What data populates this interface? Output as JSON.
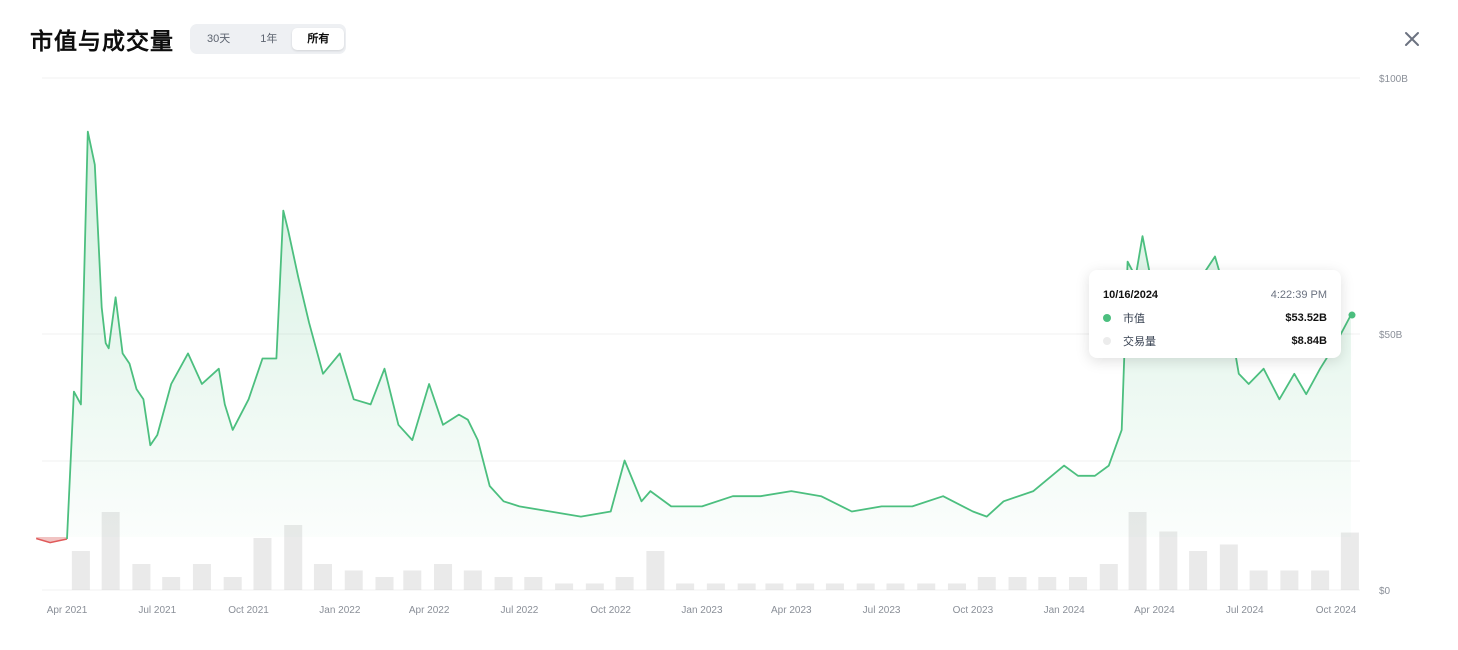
{
  "header": {
    "title": "市值与成交量",
    "ranges": [
      {
        "label": "30天",
        "active": false
      },
      {
        "label": "1年",
        "active": false
      },
      {
        "label": "所有",
        "active": true
      }
    ]
  },
  "tooltip": {
    "date": "10/16/2024",
    "time": "4:22:39 PM",
    "rows": [
      {
        "label": "市值",
        "value": "$53.52B",
        "color": "#4cbf7f"
      },
      {
        "label": "交易量",
        "value": "$8.84B",
        "color": "#ececec"
      }
    ]
  },
  "colors": {
    "line": "#4cbf7f",
    "negative": "#e05a5a",
    "volume": "#d8d8d8",
    "grid": "#f0f0f0"
  },
  "chart_data": {
    "type": "area",
    "y_ticks": [
      "$0",
      "$50B",
      "$100B"
    ],
    "ylim": [
      0,
      100
    ],
    "y_unit": "$B",
    "x_ticks": [
      "Apr 2021",
      "Jul 2021",
      "Oct 2021",
      "Jan 2022",
      "Apr 2022",
      "Jul 2022",
      "Oct 2022",
      "Jan 2023",
      "Apr 2023",
      "Jul 2023",
      "Oct 2023",
      "Jan 2024",
      "Apr 2024",
      "Jul 2024",
      "Oct 2024"
    ],
    "series": [
      {
        "name": "市值",
        "x": [
          "2021-03-01",
          "2021-03-15",
          "2021-04-01",
          "2021-04-08",
          "2021-04-15",
          "2021-04-22",
          "2021-04-29",
          "2021-05-06",
          "2021-05-10",
          "2021-05-13",
          "2021-05-20",
          "2021-05-27",
          "2021-06-03",
          "2021-06-10",
          "2021-06-17",
          "2021-06-24",
          "2021-07-01",
          "2021-07-15",
          "2021-08-01",
          "2021-08-15",
          "2021-09-01",
          "2021-09-07",
          "2021-09-15",
          "2021-10-01",
          "2021-10-15",
          "2021-10-29",
          "2021-11-05",
          "2021-11-10",
          "2021-11-20",
          "2021-12-01",
          "2021-12-15",
          "2022-01-01",
          "2022-01-15",
          "2022-02-01",
          "2022-02-15",
          "2022-03-01",
          "2022-03-15",
          "2022-04-01",
          "2022-04-15",
          "2022-05-01",
          "2022-05-10",
          "2022-05-20",
          "2022-06-01",
          "2022-06-15",
          "2022-07-01",
          "2022-08-01",
          "2022-09-01",
          "2022-10-01",
          "2022-10-15",
          "2022-11-01",
          "2022-11-10",
          "2022-12-01",
          "2023-01-01",
          "2023-02-01",
          "2023-03-01",
          "2023-04-01",
          "2023-05-01",
          "2023-06-01",
          "2023-07-01",
          "2023-08-01",
          "2023-09-01",
          "2023-10-01",
          "2023-10-15",
          "2023-11-01",
          "2023-12-01",
          "2024-01-01",
          "2024-01-15",
          "2024-02-01",
          "2024-02-15",
          "2024-02-28",
          "2024-03-05",
          "2024-03-13",
          "2024-03-20",
          "2024-04-01",
          "2024-04-15",
          "2024-05-01",
          "2024-05-15",
          "2024-06-01",
          "2024-06-10",
          "2024-06-25",
          "2024-07-05",
          "2024-07-20",
          "2024-08-05",
          "2024-08-20",
          "2024-09-01",
          "2024-09-15",
          "2024-10-01",
          "2024-10-16"
        ],
        "values": [
          9.7,
          8.9,
          9.6,
          38.5,
          36,
          89.5,
          83,
          55,
          48,
          47,
          57,
          46,
          44,
          39,
          37,
          28,
          30,
          40,
          46,
          40,
          43,
          36,
          31,
          37,
          45,
          45,
          74,
          70,
          61,
          52,
          42,
          46,
          37,
          36,
          43,
          32,
          29,
          40,
          32,
          34,
          33,
          29,
          20,
          17,
          16,
          15,
          14,
          15,
          25,
          17,
          19,
          16,
          16,
          18,
          18,
          19,
          18,
          15,
          16,
          16,
          18,
          15,
          14,
          17,
          19,
          24,
          22,
          22,
          24,
          31,
          64,
          61,
          69,
          57,
          60,
          59,
          60,
          65,
          59,
          42,
          40,
          43,
          37,
          42,
          38,
          43,
          48,
          53.52
        ]
      },
      {
        "name": "交易量",
        "x": [
          "2021-04",
          "2021-05",
          "2021-06",
          "2021-07",
          "2021-08",
          "2021-09",
          "2021-10",
          "2021-11",
          "2021-12",
          "2022-01",
          "2022-02",
          "2022-03",
          "2022-04",
          "2022-05",
          "2022-06",
          "2022-07",
          "2022-08",
          "2022-09",
          "2022-10",
          "2022-11",
          "2022-12",
          "2023-01",
          "2023-02",
          "2023-03",
          "2023-04",
          "2023-05",
          "2023-06",
          "2023-07",
          "2023-08",
          "2023-09",
          "2023-10",
          "2023-11",
          "2023-12",
          "2024-01",
          "2024-02",
          "2024-03",
          "2024-04",
          "2024-05",
          "2024-06",
          "2024-07",
          "2024-08",
          "2024-09",
          "2024-10"
        ],
        "values": [
          6,
          12,
          4,
          2,
          4,
          2,
          8,
          10,
          4,
          3,
          2,
          3,
          4,
          3,
          2,
          2,
          1,
          1,
          2,
          6,
          1,
          1,
          1,
          1,
          1,
          1,
          1,
          1,
          1,
          1,
          2,
          2,
          2,
          2,
          4,
          12,
          9,
          6,
          7,
          3,
          3,
          3,
          8.84
        ]
      }
    ],
    "grid": true,
    "legend": "none"
  }
}
